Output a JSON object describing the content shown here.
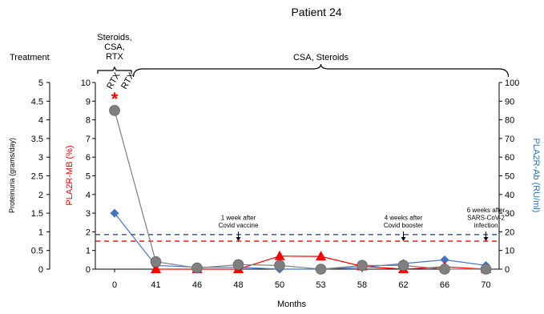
{
  "chart_data": {
    "type": "line",
    "title": "Patient 24",
    "xlabel": "Months",
    "ylabel_left": "Proteinuria (grams/day)",
    "ylabel_inner": "PLA2R-MB (%)",
    "ylabel_right": "PLA2R-Ab (RU/ml)",
    "treatment_label": "Treatment",
    "categories": [
      "0",
      "41",
      "46",
      "48",
      "50",
      "53",
      "58",
      "62",
      "66",
      "70"
    ],
    "ylim_left": [
      0,
      5
    ],
    "ylim_inner": [
      0,
      10
    ],
    "ylim_right": [
      0,
      100
    ],
    "yticks_left": [
      "0",
      "0.5",
      "1",
      "1.5",
      "2",
      "2.5",
      "3",
      "3.5",
      "4",
      "4.5",
      "5"
    ],
    "yticks_inner": [
      "0",
      "1",
      "2",
      "3",
      "4",
      "5",
      "6",
      "7",
      "8",
      "9",
      "10"
    ],
    "yticks_right": [
      "0",
      "10",
      "20",
      "30",
      "40",
      "50",
      "60",
      "70",
      "80",
      "90",
      "100"
    ],
    "series": [
      {
        "axis": "left",
        "color": "#7f7f7f",
        "marker": "circle",
        "values": [
          4.25,
          0.2,
          0.03,
          0.12,
          0.1,
          0.0,
          0.1,
          0.1,
          0.0,
          0.0
        ]
      },
      {
        "axis": "inner",
        "color": "#ff0000",
        "marker": "triangle",
        "values": [
          null,
          0.0,
          0.0,
          0.0,
          0.7,
          0.68,
          0.15,
          0.0,
          0.12,
          0.0
        ]
      },
      {
        "axis": "right",
        "color": "#4472c4",
        "marker": "diamond",
        "values": [
          30,
          2,
          1,
          1,
          0,
          0,
          1,
          3,
          5,
          2
        ]
      }
    ],
    "threshold_lines": [
      {
        "axis": "right",
        "value": 18.5,
        "color": "#1f3864"
      },
      {
        "axis": "inner",
        "value": 1.5,
        "color": "#ff0000"
      }
    ],
    "treatments": [
      {
        "text": [
          "Steroids,",
          "CSA,",
          "RTX"
        ],
        "from": "0",
        "to": "0"
      },
      {
        "text": [
          "CSA, Steroids"
        ],
        "from": "41",
        "to": "70"
      }
    ],
    "rtx_labels": [
      "RTX",
      "RTX"
    ],
    "asterisk": {
      "category": "0",
      "text": "*"
    },
    "annotations": [
      {
        "category": "48",
        "lines": [
          "1 week after",
          "Covid vaccine"
        ]
      },
      {
        "category": "62",
        "lines": [
          "4 weeks after",
          "Covid booster"
        ]
      },
      {
        "category": "70",
        "lines": [
          "6 weeks after",
          "SARS-CoV-2",
          "infection"
        ]
      }
    ]
  }
}
